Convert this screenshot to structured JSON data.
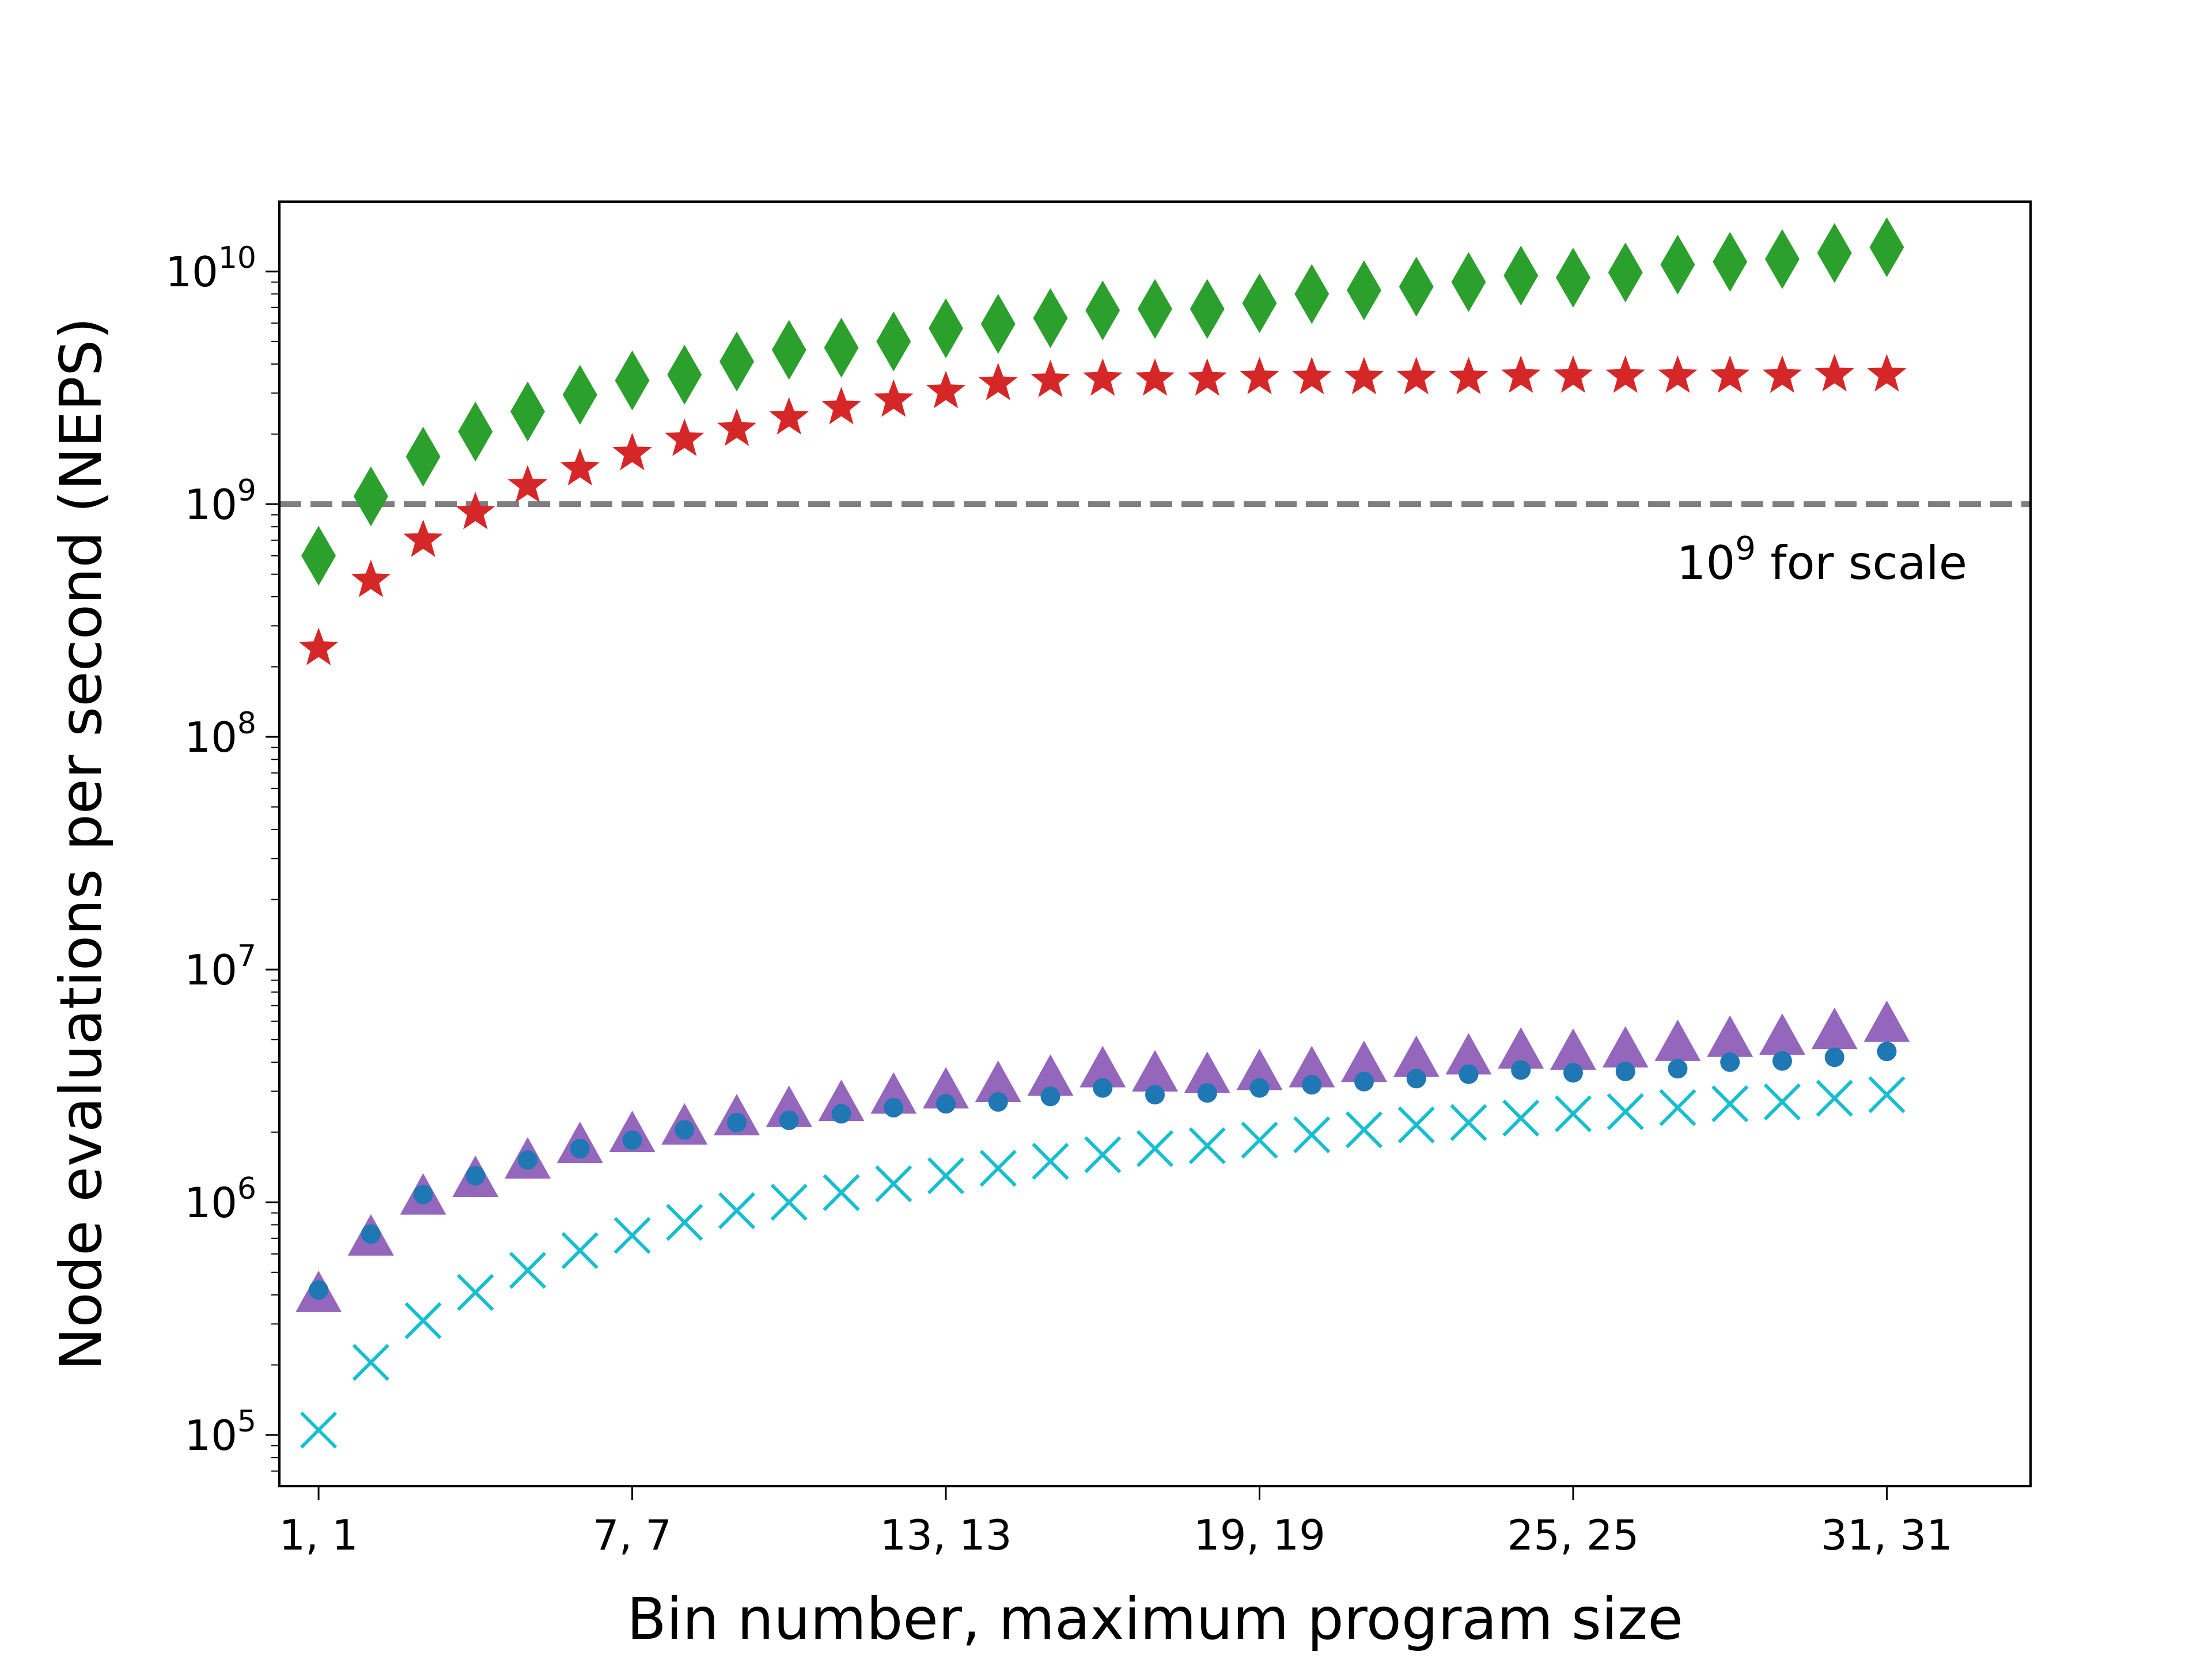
{
  "chart_data": {
    "type": "scatter",
    "xlabel": "Bin number, maximum program size",
    "ylabel": "Node evaluations per second (NEPS)",
    "y_scale": "log",
    "ylim_exponents": [
      4.78,
      10.3
    ],
    "xlim": [
      0.25,
      33.75
    ],
    "x": [
      1,
      2,
      3,
      4,
      5,
      6,
      7,
      8,
      9,
      10,
      11,
      12,
      13,
      14,
      15,
      16,
      17,
      18,
      19,
      20,
      21,
      22,
      23,
      24,
      25,
      26,
      27,
      28,
      29,
      30,
      31
    ],
    "x_ticks": [
      {
        "value": 1,
        "label": "1, 1"
      },
      {
        "value": 7,
        "label": "7, 7"
      },
      {
        "value": 13,
        "label": "13, 13"
      },
      {
        "value": 19,
        "label": "19, 19"
      },
      {
        "value": 25,
        "label": "25, 25"
      },
      {
        "value": 31,
        "label": "31, 31"
      }
    ],
    "y_ticks": [
      {
        "exp": 5,
        "base": "10",
        "sup": "5"
      },
      {
        "exp": 6,
        "base": "10",
        "sup": "6"
      },
      {
        "exp": 7,
        "base": "10",
        "sup": "7"
      },
      {
        "exp": 8,
        "base": "10",
        "sup": "8"
      },
      {
        "exp": 9,
        "base": "10",
        "sup": "9"
      },
      {
        "exp": 10,
        "base": "10",
        "sup": "10"
      }
    ],
    "reference_line": {
      "value": 1000000000.0,
      "color": "#7f7f7f",
      "style": "dashed",
      "label_base": "10",
      "label_sup": "9",
      "label_rest": " for scale"
    },
    "series": [
      {
        "marker": "diamond",
        "color": "#2ca02c",
        "values": [
          600000000.0,
          1080000000.0,
          1600000000.0,
          2050000000.0,
          2500000000.0,
          2950000000.0,
          3400000000.0,
          3600000000.0,
          4100000000.0,
          4600000000.0,
          4700000000.0,
          5000000000.0,
          5700000000.0,
          5950000000.0,
          6300000000.0,
          6800000000.0,
          6900000000.0,
          6900000000.0,
          7300000000.0,
          8000000000.0,
          8300000000.0,
          8600000000.0,
          9000000000.0,
          9600000000.0,
          9400000000.0,
          9900000000.0,
          10700000000.0,
          11000000000.0,
          11300000000.0,
          12000000000.0,
          12700000000.0
        ]
      },
      {
        "marker": "star",
        "color": "#d62728",
        "values": [
          240000000.0,
          470000000.0,
          700000000.0,
          920000000.0,
          1200000000.0,
          1420000000.0,
          1650000000.0,
          1900000000.0,
          2100000000.0,
          2350000000.0,
          2600000000.0,
          2800000000.0,
          3050000000.0,
          3300000000.0,
          3400000000.0,
          3450000000.0,
          3450000000.0,
          3450000000.0,
          3500000000.0,
          3500000000.0,
          3500000000.0,
          3500000000.0,
          3500000000.0,
          3550000000.0,
          3550000000.0,
          3550000000.0,
          3550000000.0,
          3550000000.0,
          3550000000.0,
          3600000000.0,
          3600000000.0
        ]
      },
      {
        "marker": "triangle",
        "color": "#9467bd",
        "values": [
          400000.0,
          700000.0,
          1050000.0,
          1250000.0,
          1500000.0,
          1750000.0,
          1950000.0,
          2100000.0,
          2300000.0,
          2500000.0,
          2650000.0,
          2850000.0,
          3000000.0,
          3200000.0,
          3400000.0,
          3700000.0,
          3550000.0,
          3500000.0,
          3600000.0,
          3700000.0,
          3900000.0,
          4100000.0,
          4200000.0,
          4450000.0,
          4400000.0,
          4500000.0,
          4800000.0,
          5000000.0,
          5100000.0,
          5400000.0,
          5800000.0
        ]
      },
      {
        "marker": "circle",
        "color": "#1f77b4",
        "values": [
          420000.0,
          730000.0,
          1080000.0,
          1300000.0,
          1520000.0,
          1700000.0,
          1850000.0,
          2050000.0,
          2200000.0,
          2250000.0,
          2400000.0,
          2550000.0,
          2650000.0,
          2700000.0,
          2850000.0,
          3100000.0,
          2900000.0,
          2950000.0,
          3100000.0,
          3200000.0,
          3300000.0,
          3400000.0,
          3550000.0,
          3700000.0,
          3600000.0,
          3650000.0,
          3750000.0,
          4000000.0,
          4050000.0,
          4200000.0,
          4450000.0
        ]
      },
      {
        "marker": "x",
        "color": "#17becf",
        "values": [
          105000.0,
          205000.0,
          310000.0,
          410000.0,
          510000.0,
          620000.0,
          720000.0,
          820000.0,
          920000.0,
          1000000.0,
          1100000.0,
          1200000.0,
          1300000.0,
          1400000.0,
          1500000.0,
          1600000.0,
          1700000.0,
          1750000.0,
          1850000.0,
          1950000.0,
          2050000.0,
          2150000.0,
          2200000.0,
          2300000.0,
          2400000.0,
          2450000.0,
          2550000.0,
          2650000.0,
          2700000.0,
          2800000.0,
          2900000.0
        ]
      }
    ]
  }
}
